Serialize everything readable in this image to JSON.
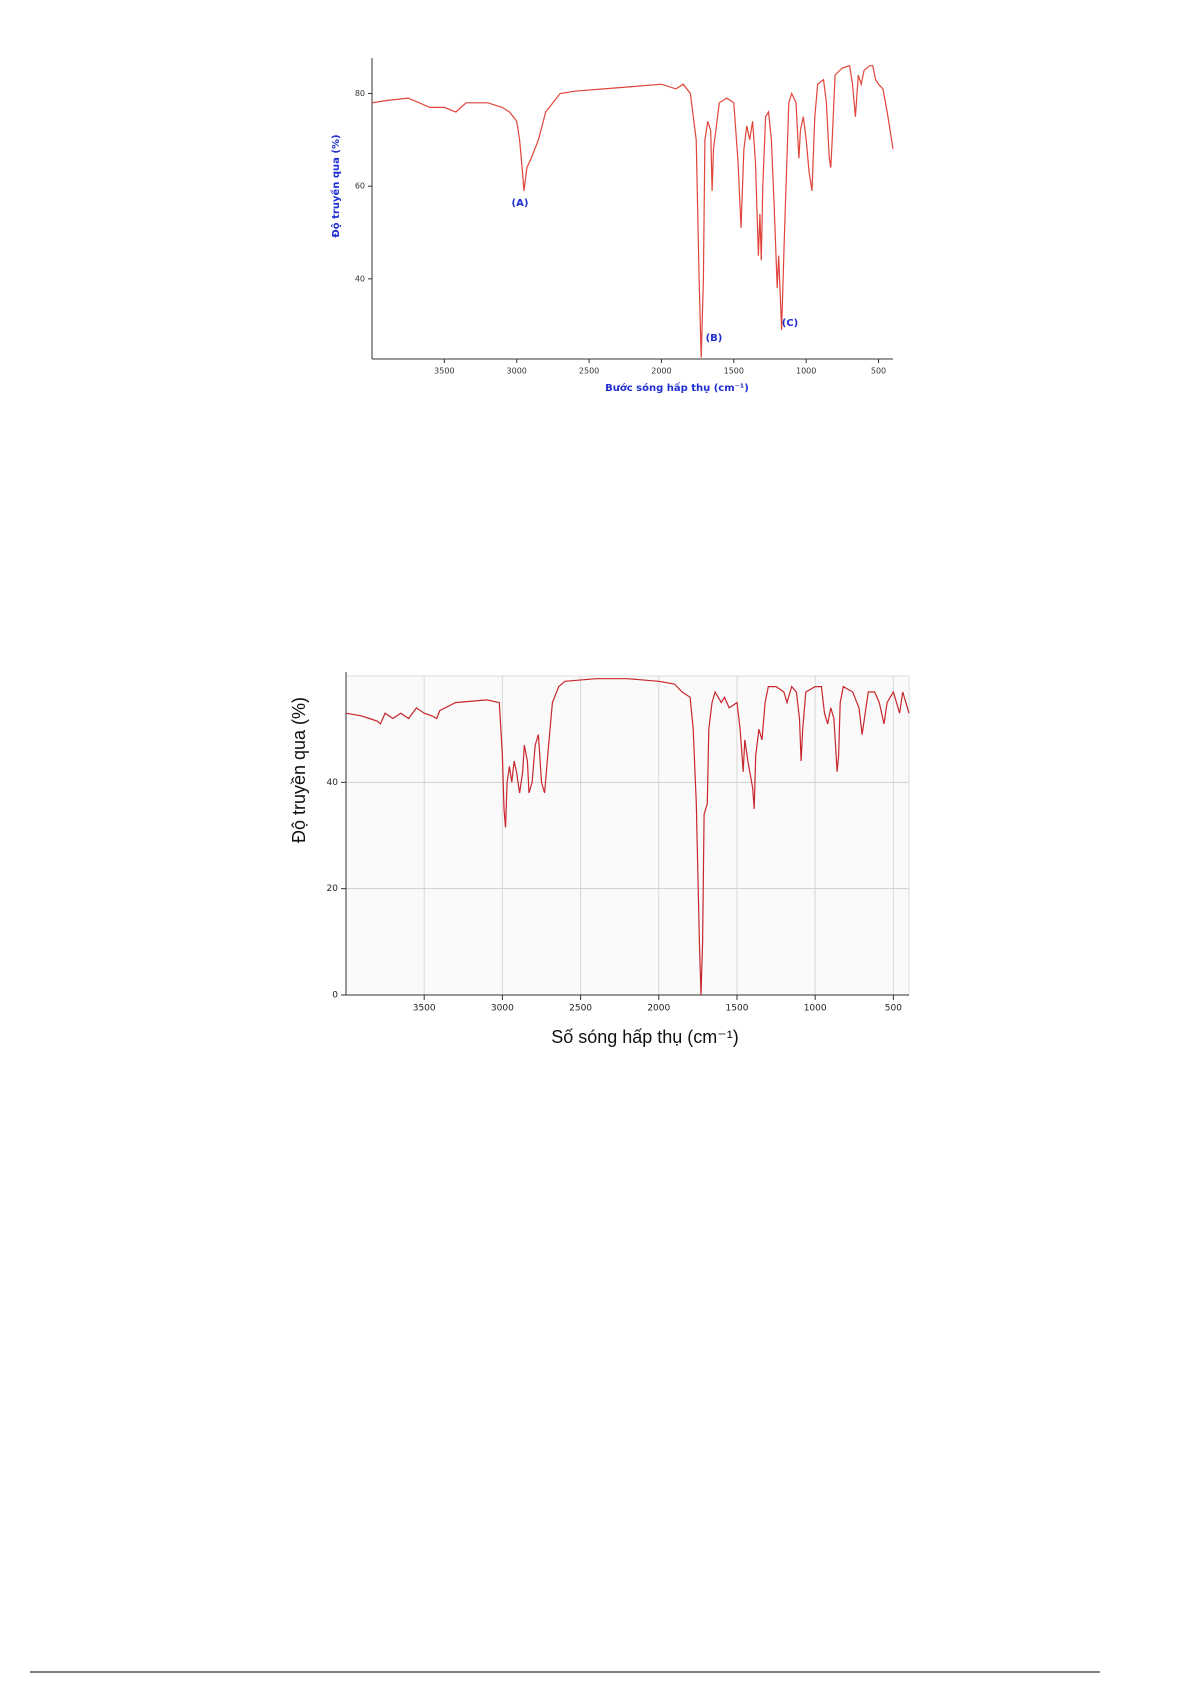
{
  "chart_data": [
    {
      "type": "line",
      "y_label": "Độ truyền qua (%)",
      "x_label": "Bước sóng hấp thụ (cm⁻¹)",
      "annotations": [
        "(A)",
        "(B)",
        "(C)"
      ],
      "color": "#e0443a",
      "grid": false,
      "xlim": [
        4000,
        400
      ],
      "xticks": [
        3500,
        3000,
        2500,
        2000,
        1500,
        1000,
        500
      ],
      "ylim": [
        22.7,
        86.8
      ],
      "yticks": [
        40,
        60,
        80
      ],
      "x": [
        4000,
        3900,
        3750,
        3600,
        3500,
        3420,
        3350,
        3200,
        3100,
        3050,
        3000,
        2980,
        2960,
        2950,
        2930,
        2900,
        2850,
        2800,
        2700,
        2600,
        2400,
        2200,
        2000,
        1900,
        1850,
        1800,
        1760,
        1740,
        1725,
        1710,
        1700,
        1680,
        1660,
        1650,
        1640,
        1600,
        1550,
        1500,
        1470,
        1450,
        1430,
        1410,
        1390,
        1370,
        1350,
        1330,
        1320,
        1310,
        1300,
        1280,
        1260,
        1240,
        1220,
        1200,
        1190,
        1170,
        1150,
        1120,
        1100,
        1070,
        1050,
        1040,
        1020,
        1000,
        980,
        960,
        940,
        920,
        880,
        860,
        840,
        830,
        820,
        800,
        750,
        700,
        680,
        660,
        640,
        620,
        600,
        560,
        540,
        520,
        500,
        470,
        440,
        400
      ],
      "values": [
        78,
        78.5,
        79,
        77,
        77,
        76,
        78,
        78,
        77,
        76,
        74,
        70,
        63,
        59,
        64,
        66,
        70,
        76,
        80,
        80.5,
        81,
        81.5,
        82,
        81,
        82,
        80,
        70,
        40,
        23,
        40,
        70,
        74,
        72,
        59,
        68,
        78,
        79,
        78,
        65,
        51,
        68,
        73,
        70,
        74,
        65,
        45,
        54,
        44,
        60,
        75,
        76,
        70,
        55,
        38,
        45,
        29,
        50,
        78,
        80,
        78,
        66,
        72,
        75,
        70,
        63,
        59,
        75,
        82,
        83,
        78,
        66,
        64,
        70,
        84,
        85.5,
        86,
        82,
        75,
        84,
        82,
        85,
        86,
        86,
        83,
        82,
        81,
        76,
        68
      ]
    },
    {
      "type": "line",
      "y_label": "Độ truyền qua (%)",
      "x_label": "Số sóng hấp thụ (cm⁻¹)",
      "color": "#c8262c",
      "grid": true,
      "xlim": [
        4000,
        400
      ],
      "xticks": [
        3500,
        3000,
        2500,
        2000,
        1500,
        1000,
        500
      ],
      "ylim": [
        0,
        60
      ],
      "yticks": [
        0,
        20,
        40
      ],
      "x": [
        4000,
        3900,
        3850,
        3800,
        3780,
        3750,
        3700,
        3650,
        3600,
        3550,
        3500,
        3450,
        3420,
        3400,
        3300,
        3100,
        3020,
        3000,
        2990,
        2980,
        2970,
        2955,
        2940,
        2925,
        2910,
        2890,
        2870,
        2860,
        2840,
        2830,
        2810,
        2790,
        2770,
        2750,
        2730,
        2710,
        2680,
        2640,
        2600,
        2400,
        2200,
        2000,
        1900,
        1850,
        1800,
        1780,
        1760,
        1740,
        1730,
        1720,
        1710,
        1690,
        1680,
        1660,
        1640,
        1600,
        1580,
        1550,
        1500,
        1480,
        1460,
        1450,
        1430,
        1400,
        1390,
        1380,
        1360,
        1340,
        1320,
        1300,
        1250,
        1200,
        1180,
        1150,
        1120,
        1100,
        1090,
        1080,
        1060,
        1000,
        960,
        940,
        920,
        900,
        880,
        860,
        850,
        840,
        820,
        760,
        720,
        700,
        680,
        660,
        620,
        590,
        560,
        540,
        520,
        500,
        480,
        460,
        440,
        420,
        400
      ],
      "values": [
        53,
        52.5,
        52,
        51.5,
        51,
        53,
        52,
        53,
        52,
        54,
        53,
        52.5,
        52,
        53.5,
        55,
        55.5,
        55,
        45,
        35,
        31.5,
        40,
        43,
        40,
        44,
        42,
        38,
        42,
        47,
        44,
        38,
        40,
        47,
        49,
        40,
        38,
        45,
        55,
        58,
        59,
        59.5,
        59.5,
        59,
        58.5,
        57,
        56,
        50,
        36,
        10,
        0,
        10,
        34,
        36,
        50,
        55,
        57,
        55,
        56,
        54,
        55,
        50,
        42,
        48,
        44,
        39,
        35,
        45,
        50,
        48,
        55,
        58,
        58,
        57,
        55,
        58,
        57,
        52,
        44,
        50,
        57,
        58,
        58,
        53,
        51,
        54,
        52,
        42,
        45,
        55,
        58,
        57,
        54,
        49,
        53,
        57,
        57,
        55,
        51,
        55,
        56,
        57,
        55,
        53,
        57,
        55,
        53
      ]
    }
  ]
}
